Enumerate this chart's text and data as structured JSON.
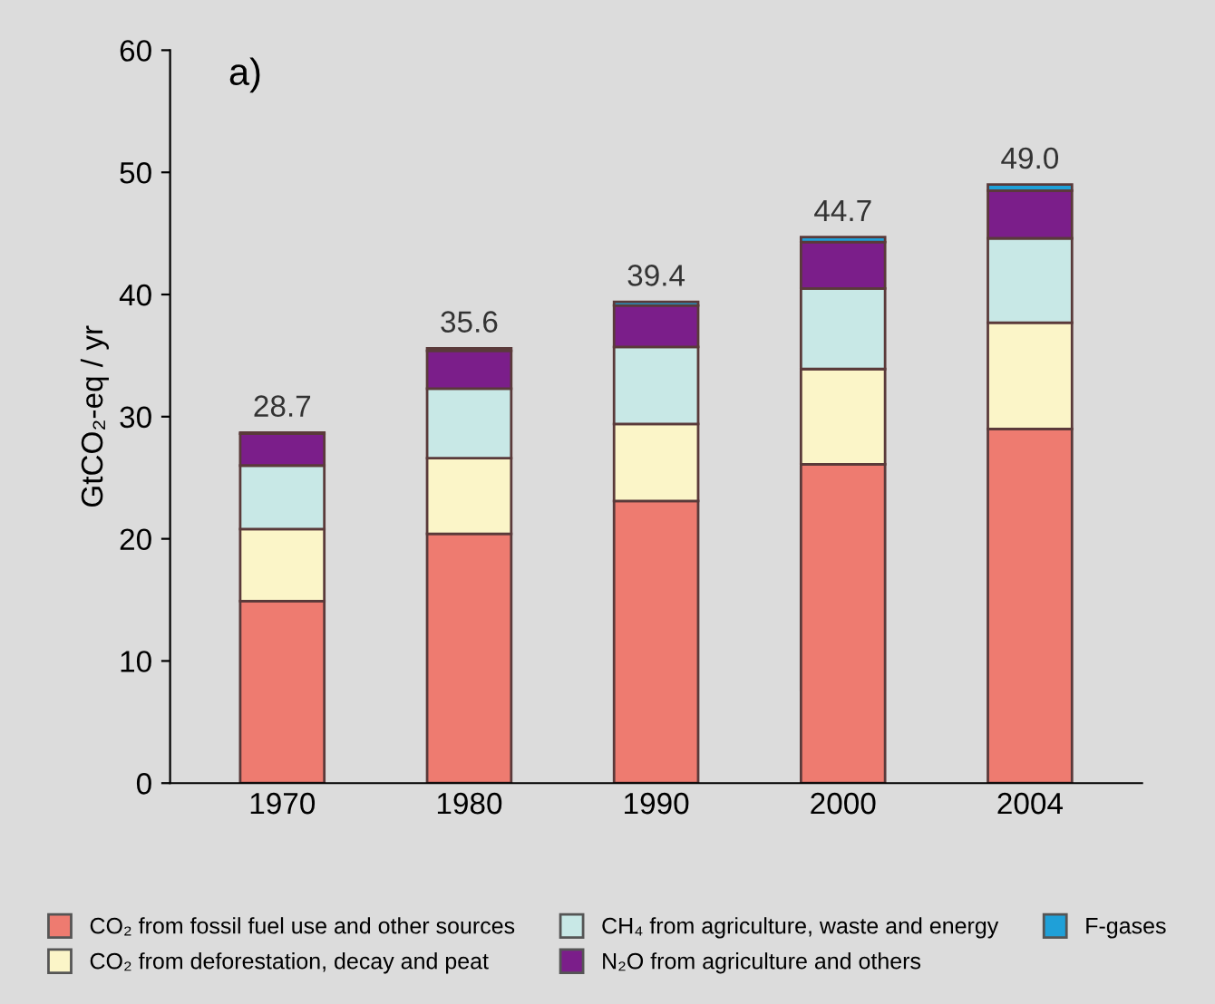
{
  "chart_data": {
    "type": "bar",
    "stacked": true,
    "categories": [
      "1970",
      "1980",
      "1990",
      "2000",
      "2004"
    ],
    "ylabel": "GtCO₂-eq / yr",
    "annotations": [
      "a)"
    ],
    "series": [
      {
        "name": "CO₂ from fossil fuel use and other sources",
        "color": "#ee7b70",
        "values": [
          14.9,
          20.4,
          23.1,
          26.1,
          29.0
        ]
      },
      {
        "name": "CO₂ from deforestation, decay and peat",
        "color": "#fbf5c8",
        "values": [
          5.9,
          6.2,
          6.3,
          7.8,
          8.7
        ]
      },
      {
        "name": "CH₄ from agriculture, waste and energy",
        "color": "#c8e8e6",
        "values": [
          5.2,
          5.7,
          6.3,
          6.6,
          6.9
        ]
      },
      {
        "name": "N₂O from agriculture and others",
        "color": "#7b1e8a",
        "values": [
          2.6,
          3.1,
          3.4,
          3.8,
          3.9
        ]
      },
      {
        "name": "F-gases",
        "color": "#1fa0d8",
        "values": [
          0.1,
          0.2,
          0.3,
          0.4,
          0.5
        ]
      }
    ],
    "totals": [
      "28.7",
      "35.6",
      "39.4",
      "44.7",
      "49.0"
    ],
    "ylim": [
      0,
      60
    ],
    "yticks": [
      0,
      10,
      20,
      30,
      40,
      50,
      60
    ],
    "grid": false,
    "legend": "bottom"
  }
}
